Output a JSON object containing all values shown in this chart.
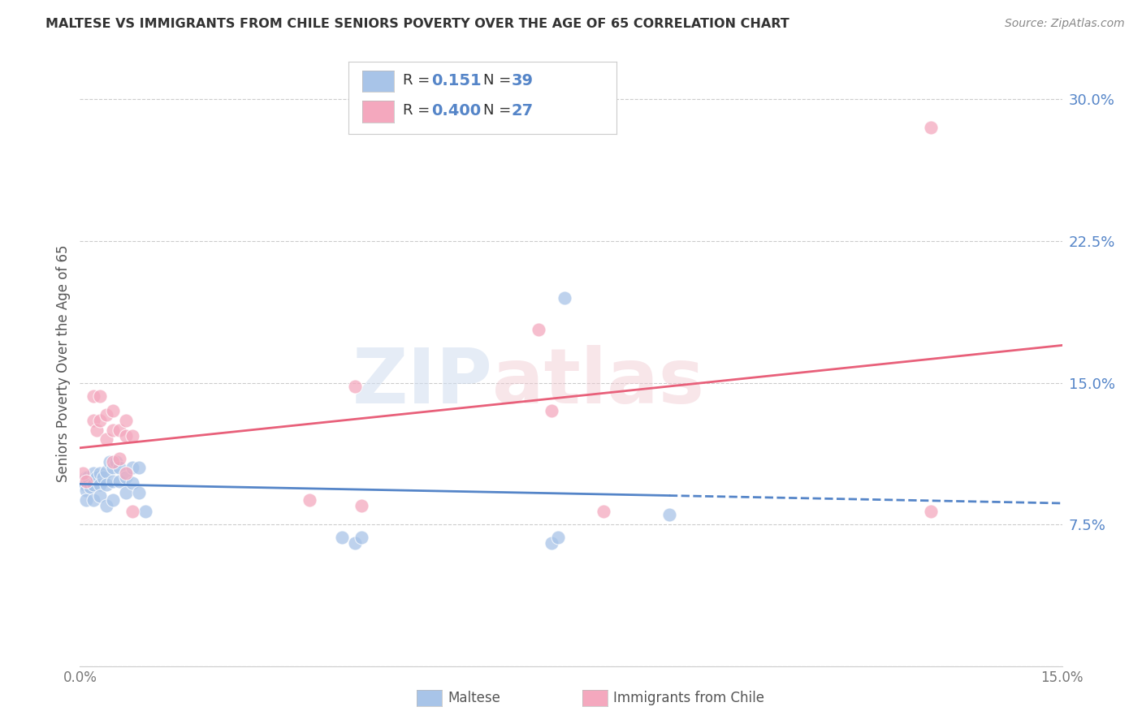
{
  "title": "MALTESE VS IMMIGRANTS FROM CHILE SENIORS POVERTY OVER THE AGE OF 65 CORRELATION CHART",
  "source": "Source: ZipAtlas.com",
  "ylabel": "Seniors Poverty Over the Age of 65",
  "xlim": [
    0.0,
    0.15
  ],
  "ylim": [
    0.0,
    0.32
  ],
  "y_tick_positions": [
    0.0,
    0.075,
    0.15,
    0.225,
    0.3
  ],
  "y_tick_labels": [
    "",
    "7.5%",
    "15.0%",
    "22.5%",
    "30.0%"
  ],
  "legend_R_blue": "0.151",
  "legend_N_blue": "39",
  "legend_R_pink": "0.400",
  "legend_N_pink": "27",
  "blue_color": "#a8c4e8",
  "pink_color": "#f4a8be",
  "blue_line_color": "#5585c8",
  "pink_line_color": "#e8607a",
  "watermark": "ZIPatlas",
  "maltese_x": [
    0.0005,
    0.0008,
    0.001,
    0.001,
    0.001,
    0.0012,
    0.0015,
    0.002,
    0.002,
    0.002,
    0.0025,
    0.003,
    0.003,
    0.003,
    0.0035,
    0.004,
    0.004,
    0.004,
    0.0045,
    0.005,
    0.005,
    0.005,
    0.0055,
    0.006,
    0.006,
    0.007,
    0.007,
    0.008,
    0.008,
    0.009,
    0.009,
    0.01,
    0.04,
    0.042,
    0.043,
    0.072,
    0.073,
    0.074,
    0.09
  ],
  "maltese_y": [
    0.098,
    0.096,
    0.1,
    0.093,
    0.088,
    0.1,
    0.095,
    0.102,
    0.096,
    0.088,
    0.1,
    0.102,
    0.096,
    0.09,
    0.1,
    0.103,
    0.096,
    0.085,
    0.108,
    0.105,
    0.098,
    0.088,
    0.108,
    0.105,
    0.098,
    0.1,
    0.092,
    0.105,
    0.097,
    0.105,
    0.092,
    0.082,
    0.068,
    0.065,
    0.068,
    0.065,
    0.068,
    0.195,
    0.08
  ],
  "chile_x": [
    0.0005,
    0.001,
    0.002,
    0.002,
    0.0025,
    0.003,
    0.003,
    0.004,
    0.004,
    0.005,
    0.005,
    0.005,
    0.006,
    0.006,
    0.007,
    0.007,
    0.007,
    0.008,
    0.008,
    0.035,
    0.042,
    0.043,
    0.07,
    0.072,
    0.08,
    0.13,
    0.13
  ],
  "chile_y": [
    0.102,
    0.098,
    0.143,
    0.13,
    0.125,
    0.143,
    0.13,
    0.133,
    0.12,
    0.135,
    0.125,
    0.108,
    0.125,
    0.11,
    0.13,
    0.122,
    0.102,
    0.122,
    0.082,
    0.088,
    0.148,
    0.085,
    0.178,
    0.135,
    0.082,
    0.082,
    0.285
  ]
}
